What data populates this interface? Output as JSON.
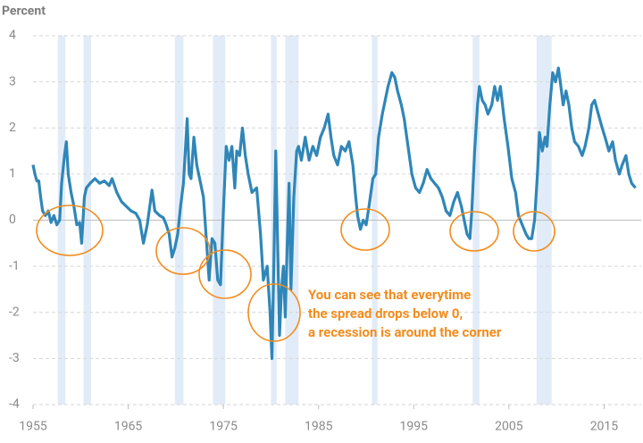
{
  "chart_data": {
    "type": "line",
    "y_label": "Percent",
    "annotation": [
      "You can see that everytime",
      "the spread drops below 0,",
      "a recession is around the corner"
    ],
    "xlim": [
      1955,
      2018.9
    ],
    "ylim": [
      -4,
      4
    ],
    "xticks": [
      1955,
      1965,
      1975,
      1985,
      1995,
      2005,
      2015
    ],
    "yticks": [
      -4,
      -3,
      -2,
      -1,
      0,
      1,
      2,
      3,
      4
    ],
    "grid": true,
    "recessions": [
      [
        1957.6,
        1958.4
      ],
      [
        1960.3,
        1961.1
      ],
      [
        1969.9,
        1970.8
      ],
      [
        1973.9,
        1975.2
      ],
      [
        1980.0,
        1980.6
      ],
      [
        1981.5,
        1982.9
      ],
      [
        1990.6,
        1991.2
      ],
      [
        2001.2,
        2001.9
      ],
      [
        2007.9,
        2009.5
      ]
    ],
    "recession_color": "#e2ecf8",
    "series": [
      {
        "color": "#2f86b8",
        "x": [
          1955.0,
          1955.2,
          1955.4,
          1955.6,
          1955.8,
          1956.0,
          1956.3,
          1956.6,
          1956.9,
          1957.2,
          1957.5,
          1957.8,
          1958.0,
          1958.3,
          1958.5,
          1958.7,
          1959.0,
          1959.3,
          1959.6,
          1959.9,
          1960.1,
          1960.4,
          1960.6,
          1961.0,
          1961.5,
          1962.0,
          1962.5,
          1963.0,
          1963.3,
          1963.8,
          1964.3,
          1964.8,
          1965.3,
          1965.8,
          1966.2,
          1966.6,
          1967.0,
          1967.5,
          1967.8,
          1968.3,
          1968.7,
          1969.0,
          1969.3,
          1969.6,
          1969.9,
          1970.2,
          1970.5,
          1970.8,
          1971.0,
          1971.2,
          1971.4,
          1971.6,
          1971.9,
          1972.2,
          1972.6,
          1972.9,
          1973.2,
          1973.5,
          1973.8,
          1974.1,
          1974.4,
          1974.7,
          1975.0,
          1975.3,
          1975.6,
          1975.9,
          1976.2,
          1976.4,
          1976.7,
          1977.0,
          1977.3,
          1977.6,
          1978.0,
          1978.5,
          1978.9,
          1979.2,
          1979.6,
          1979.9,
          1980.1,
          1980.3,
          1980.5,
          1980.7,
          1980.9,
          1981.1,
          1981.3,
          1981.5,
          1981.7,
          1981.9,
          1982.1,
          1982.4,
          1982.7,
          1982.9,
          1983.2,
          1983.6,
          1984.0,
          1984.4,
          1984.8,
          1985.2,
          1985.6,
          1986.0,
          1986.3,
          1986.6,
          1987.0,
          1987.4,
          1987.8,
          1988.2,
          1988.6,
          1988.9,
          1989.1,
          1989.4,
          1989.7,
          1990.0,
          1990.3,
          1990.7,
          1991.0,
          1991.3,
          1991.7,
          1992.0,
          1992.3,
          1992.7,
          1993.0,
          1993.3,
          1993.7,
          1994.0,
          1994.4,
          1994.8,
          1995.2,
          1995.6,
          1996.0,
          1996.4,
          1996.8,
          1997.2,
          1997.6,
          1998.0,
          1998.4,
          1998.8,
          1999.2,
          1999.6,
          2000.0,
          2000.3,
          2000.6,
          2000.9,
          2001.1,
          2001.4,
          2001.7,
          2001.9,
          2002.2,
          2002.5,
          2002.8,
          2003.2,
          2003.5,
          2003.8,
          2004.1,
          2004.5,
          2004.9,
          2005.3,
          2005.7,
          2006.0,
          2006.4,
          2006.8,
          2007.1,
          2007.4,
          2007.7,
          2008.0,
          2008.2,
          2008.5,
          2008.8,
          2009.0,
          2009.3,
          2009.6,
          2009.9,
          2010.2,
          2010.4,
          2010.7,
          2011.0,
          2011.3,
          2011.6,
          2011.9,
          2012.3,
          2012.7,
          2013.0,
          2013.4,
          2013.7,
          2014.0,
          2014.4,
          2014.8,
          2015.1,
          2015.5,
          2015.9,
          2016.2,
          2016.6,
          2016.9,
          2017.3,
          2017.6,
          2017.9,
          2018.3
        ],
        "values": [
          1.2,
          1.0,
          0.85,
          0.85,
          0.5,
          0.2,
          0.1,
          0.2,
          -0.05,
          0.1,
          -0.1,
          0.0,
          0.8,
          1.4,
          1.7,
          1.0,
          0.6,
          0.3,
          -0.1,
          -0.05,
          -0.5,
          0.5,
          0.7,
          0.8,
          0.9,
          0.8,
          0.85,
          0.75,
          0.9,
          0.6,
          0.4,
          0.3,
          0.2,
          0.15,
          0.0,
          -0.5,
          -0.1,
          0.65,
          0.2,
          0.1,
          0.05,
          -0.1,
          -0.3,
          -0.8,
          -0.6,
          -0.3,
          0.3,
          0.8,
          1.5,
          2.2,
          1.0,
          0.9,
          1.8,
          1.2,
          0.8,
          0.5,
          -0.4,
          -1.3,
          -0.4,
          -0.5,
          -1.3,
          -1.4,
          0.2,
          1.6,
          1.3,
          1.6,
          0.7,
          1.5,
          1.4,
          2.0,
          1.4,
          1.0,
          0.6,
          0.7,
          -0.3,
          -1.3,
          -1.0,
          -2.0,
          -3.0,
          -1.0,
          1.5,
          -0.5,
          -2.5,
          -1.5,
          -1.0,
          -2.1,
          -0.6,
          0.8,
          -1.5,
          0.5,
          1.5,
          1.6,
          1.3,
          1.8,
          1.3,
          1.6,
          1.4,
          1.8,
          2.0,
          2.3,
          1.8,
          1.4,
          1.2,
          1.6,
          1.5,
          1.7,
          1.2,
          0.5,
          0.1,
          -0.2,
          0.0,
          -0.1,
          0.3,
          0.9,
          1.0,
          1.8,
          2.3,
          2.6,
          2.9,
          3.2,
          3.1,
          2.8,
          2.5,
          2.2,
          1.6,
          1.0,
          0.7,
          0.6,
          0.8,
          1.1,
          0.9,
          0.8,
          0.7,
          0.5,
          0.2,
          0.1,
          0.4,
          0.6,
          0.3,
          0.0,
          -0.3,
          -0.4,
          0.2,
          1.5,
          2.5,
          2.9,
          2.6,
          2.5,
          2.3,
          2.5,
          2.9,
          2.6,
          2.9,
          2.2,
          1.6,
          0.9,
          0.6,
          0.1,
          -0.1,
          -0.3,
          -0.4,
          -0.4,
          0.0,
          1.0,
          1.9,
          1.5,
          1.8,
          1.6,
          2.5,
          3.2,
          3.0,
          3.3,
          3.0,
          2.5,
          2.8,
          2.5,
          2.0,
          1.7,
          1.6,
          1.4,
          1.6,
          2.0,
          2.5,
          2.6,
          2.3,
          2.0,
          1.8,
          1.5,
          1.7,
          1.3,
          1.0,
          1.2,
          1.4,
          1.0,
          0.8,
          0.7
        ]
      }
    ]
  }
}
